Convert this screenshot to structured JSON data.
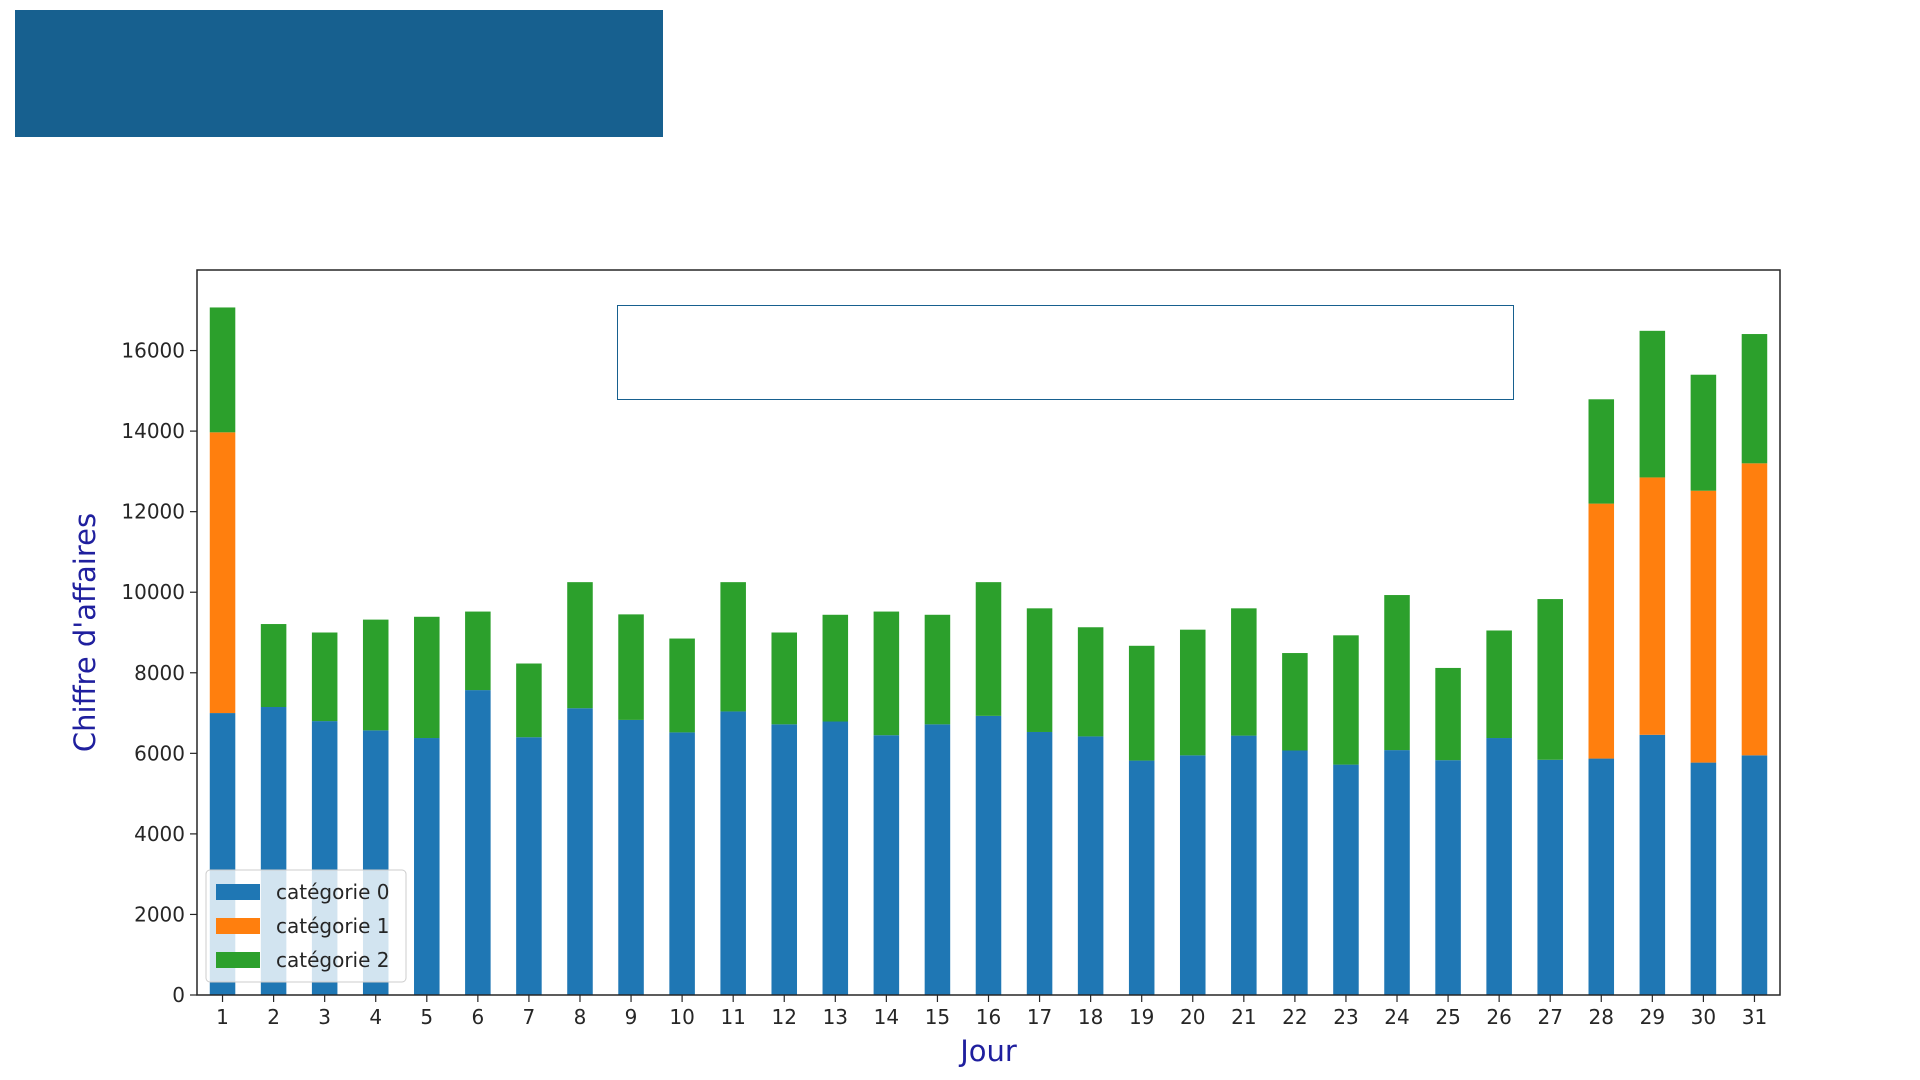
{
  "header": {
    "banner_color": "#17608f",
    "title_box_border": "#17608f"
  },
  "chart_data": {
    "type": "bar",
    "stacked": true,
    "xlabel": "Jour",
    "ylabel": "Chiffre d'affaires",
    "ylim": [
      0,
      18000
    ],
    "yticks": [
      0,
      2000,
      4000,
      6000,
      8000,
      10000,
      12000,
      14000,
      16000
    ],
    "grid": false,
    "legend_position": "bottom-left",
    "categories": [
      "1",
      "2",
      "3",
      "4",
      "5",
      "6",
      "7",
      "8",
      "9",
      "10",
      "11",
      "12",
      "13",
      "14",
      "15",
      "16",
      "17",
      "18",
      "19",
      "20",
      "21",
      "22",
      "23",
      "24",
      "25",
      "26",
      "27",
      "28",
      "29",
      "30",
      "31"
    ],
    "series": [
      {
        "name": "catégorie 0",
        "color": "#1f77b4",
        "values": [
          7000,
          7150,
          6800,
          6570,
          6380,
          7570,
          6400,
          7120,
          6830,
          6520,
          7040,
          6720,
          6790,
          6450,
          6720,
          6930,
          6530,
          6420,
          5820,
          5950,
          6440,
          6070,
          5720,
          6080,
          5830,
          6380,
          5840,
          5870,
          6460,
          5770,
          5950
        ]
      },
      {
        "name": "catégorie 1",
        "color": "#ff7f0e",
        "values": [
          6970,
          0,
          0,
          0,
          0,
          0,
          0,
          0,
          0,
          0,
          0,
          0,
          0,
          0,
          0,
          0,
          0,
          0,
          0,
          0,
          0,
          0,
          0,
          0,
          0,
          0,
          0,
          6330,
          6390,
          6750,
          7250
        ]
      },
      {
        "name": "catégorie 2",
        "color": "#2ca02c",
        "values": [
          3100,
          2060,
          2200,
          2750,
          3010,
          1950,
          1830,
          3130,
          2620,
          2330,
          3210,
          2280,
          2650,
          3070,
          2720,
          3320,
          3070,
          2710,
          2850,
          3120,
          3160,
          2420,
          3210,
          3850,
          2290,
          2670,
          3990,
          2590,
          3640,
          2880,
          3210
        ]
      }
    ]
  }
}
